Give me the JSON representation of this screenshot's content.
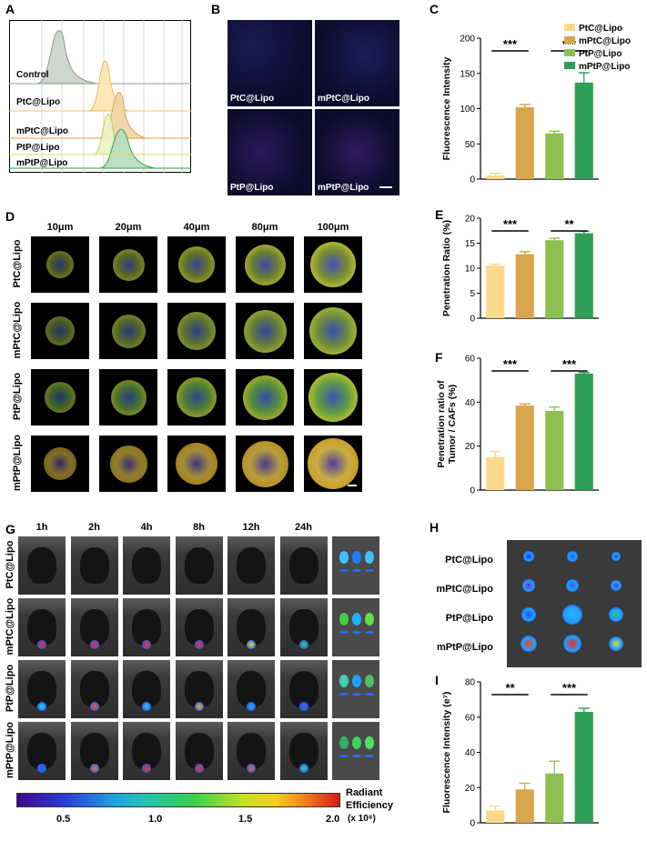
{
  "panels": {
    "A": "A",
    "B": "B",
    "C": "C",
    "D": "D",
    "E": "E",
    "F": "F",
    "G": "G",
    "H": "H",
    "I": "I"
  },
  "groups": [
    "PtC@Lipo",
    "mPtC@Lipo",
    "PtP@Lipo",
    "mPtP@Lipo"
  ],
  "colors": [
    "#fbd98a",
    "#d9a64e",
    "#8cc152",
    "#2f9e57"
  ],
  "panelA": {
    "labels": [
      "Control",
      "PtC@Lipo",
      "mPtC@Lipo",
      "PtP@Lipo",
      "mPtP@Lipo"
    ]
  },
  "panelB": {
    "labels": [
      "PtC@Lipo",
      "mPtC@Lipo",
      "PtP@Lipo",
      "mPtP@Lipo"
    ]
  },
  "panelD": {
    "depths": [
      "10μm",
      "20μm",
      "40μm",
      "80μm",
      "100μm"
    ],
    "rows": [
      "PtC@Lipo",
      "mPtC@Lipo",
      "PtP@Lipo",
      "mPtP@Lipo"
    ]
  },
  "panelG": {
    "times": [
      "1h",
      "2h",
      "4h",
      "8h",
      "12h",
      "24h"
    ],
    "rows": [
      "PtC@Lipo",
      "mPtC@Lipo",
      "PtP@Lipo",
      "mPtP@Lipo"
    ],
    "colorbar_ticks": [
      "0.5",
      "1.0",
      "1.5",
      "2.0"
    ],
    "colorbar_label_1": "Radiant",
    "colorbar_label_2": "Efficiency",
    "colorbar_unit": "(x 10⁸)"
  },
  "panelH": {
    "rows": [
      "PtC@Lipo",
      "mPtC@Lipo",
      "PtP@Lipo",
      "mPtP@Lipo"
    ]
  },
  "chart_data": [
    {
      "panel": "C",
      "type": "bar",
      "categories": [
        "PtC@Lipo",
        "mPtC@Lipo",
        "PtP@Lipo",
        "mPtP@Lipo"
      ],
      "values": [
        5,
        102,
        65,
        137
      ],
      "errors": [
        3,
        4,
        3,
        14
      ],
      "ylabel": "Fluorescence Intensity",
      "ylim": [
        0,
        200
      ],
      "yticks": [
        "0",
        "50",
        "100",
        "150",
        "200"
      ],
      "sig": [
        "***",
        "***"
      ],
      "legend": [
        "PtC@Lipo",
        "mPtC@Lipo",
        "PtP@Lipo",
        "mPtP@Lipo"
      ]
    },
    {
      "panel": "E",
      "type": "bar",
      "categories": [
        "PtC@Lipo",
        "mPtC@Lipo",
        "PtP@Lipo",
        "mPtP@Lipo"
      ],
      "values": [
        10.5,
        12.8,
        15.6,
        17.0
      ],
      "errors": [
        0.3,
        0.5,
        0.4,
        0.4
      ],
      "ylabel": "Penetration Ratio (%)",
      "ylim": [
        0,
        20
      ],
      "yticks": [
        "0",
        "5",
        "10",
        "15",
        "20"
      ],
      "sig": [
        "***",
        "**"
      ]
    },
    {
      "panel": "F",
      "type": "bar",
      "categories": [
        "PtC@Lipo",
        "mPtC@Lipo",
        "PtP@Lipo",
        "mPtP@Lipo"
      ],
      "values": [
        15,
        38.5,
        36,
        53
      ],
      "errors": [
        2.5,
        0.7,
        1.8,
        0.5
      ],
      "ylabel": "Penetration ratio of",
      "ylabel2": "Tumor / CAFs (%)",
      "ylim": [
        0,
        60
      ],
      "yticks": [
        "0",
        "20",
        "40",
        "60"
      ],
      "sig": [
        "***",
        "***"
      ]
    },
    {
      "panel": "I",
      "type": "bar",
      "categories": [
        "PtC@Lipo",
        "mPtC@Lipo",
        "PtP@Lipo",
        "mPtP@Lipo"
      ],
      "values": [
        7,
        19,
        28,
        63
      ],
      "errors": [
        2.5,
        3.5,
        7,
        2
      ],
      "ylabel": "Fluorescence Intensity (e⁷)",
      "ylim": [
        0,
        80
      ],
      "yticks": [
        "0",
        "20",
        "40",
        "60",
        "80"
      ],
      "sig": [
        "**",
        "***"
      ]
    }
  ]
}
